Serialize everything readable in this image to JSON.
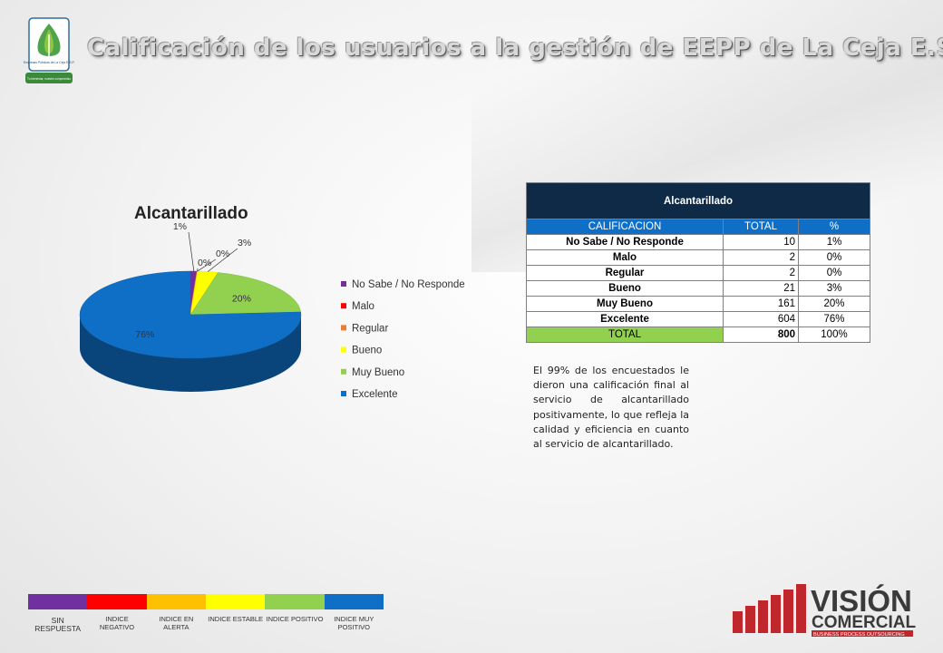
{
  "header": {
    "title": "Calificación de  los usuarios a la gestión de EEPP de La Ceja E.S.P."
  },
  "chart_data": {
    "type": "pie",
    "title": "Alcantarillado",
    "legend_position": "right",
    "slices": [
      {
        "name": "No Sabe / No Responde",
        "percent": 1,
        "label": "1%",
        "color": "#7030a0"
      },
      {
        "name": "Malo",
        "percent": 0,
        "label": "0%",
        "color": "#ff0000"
      },
      {
        "name": "Regular",
        "percent": 0,
        "label": "0%",
        "color": "#ed7d31"
      },
      {
        "name": "Bueno",
        "percent": 3,
        "label": "3%",
        "color": "#ffff00"
      },
      {
        "name": "Muy Bueno",
        "percent": 20,
        "label": "20%",
        "color": "#92d050"
      },
      {
        "name": "Excelente",
        "percent": 76,
        "label": "76%",
        "color": "#0f6fc6"
      }
    ]
  },
  "table": {
    "caption": "Alcantarillado",
    "headers": [
      "CALIFICACION",
      "TOTAL",
      "%"
    ],
    "rows": [
      [
        "No Sabe / No Responde",
        "10",
        "1%"
      ],
      [
        "Malo",
        "2",
        "0%"
      ],
      [
        "Regular",
        "2",
        "0%"
      ],
      [
        "Bueno",
        "21",
        "3%"
      ],
      [
        "Muy Bueno",
        "161",
        "20%"
      ],
      [
        "Excelente",
        "604",
        "76%"
      ]
    ],
    "total": [
      "TOTAL",
      "800",
      "100%"
    ]
  },
  "summary": {
    "text": "El 99% de los encuestados le dieron una calificación final al servicio de alcantarillado positivamente, lo que refleja la calidad y eficiencia en cuanto al servicio de alcantarillado."
  },
  "scale": [
    {
      "label": "SIN RESPUESTA",
      "color": "#7030a0"
    },
    {
      "label": "INDICE NEGATIVO",
      "color": "#ff0000"
    },
    {
      "label": "INDICE  EN ALERTA",
      "color": "#ffc000"
    },
    {
      "label": "INDICE ESTABLE",
      "color": "#ffff00"
    },
    {
      "label": "INDICE POSITIVO",
      "color": "#92d050"
    },
    {
      "label": "INDICE MUY POSITIVO",
      "color": "#0f6fc6"
    }
  ],
  "logo": {
    "text_top": "Empresas Públicas de La Ceja E.S.P.",
    "text_bottom": "Tu bienestar, nuestro compromiso"
  },
  "brand": {
    "name_top": "VISIÓN",
    "name_bottom": "COMERCIAL",
    "tagline": "BUSINESS PROCESS OUTSOURCING"
  }
}
